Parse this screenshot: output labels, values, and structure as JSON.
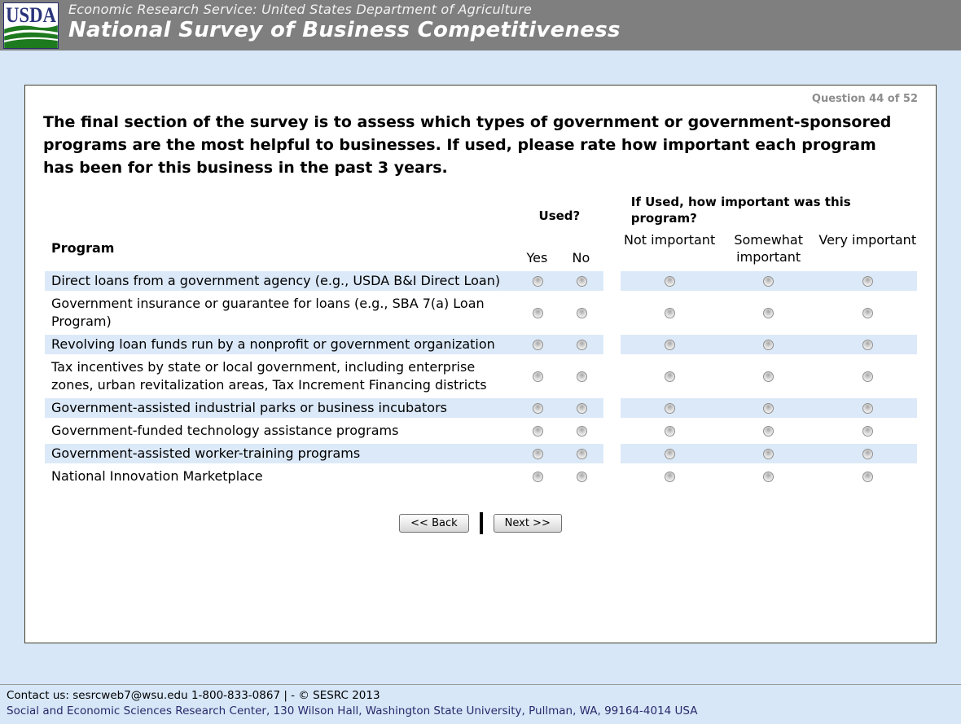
{
  "header": {
    "logo_text": "USDA",
    "agency_line": "Economic Research Service: United States Department of Agriculture",
    "survey_title": "National Survey of Business Competitiveness"
  },
  "question": {
    "counter": "Question 44 of 52",
    "text": "The final section of the survey is to assess which types of government or government-sponsored programs are the most helpful to businesses. If used, please rate how important each program has been for this business in the past 3 years."
  },
  "table": {
    "program_header": "Program",
    "used_header": "Used?",
    "importance_header": "If Used, how important was this program?",
    "used_options": [
      "Yes",
      "No"
    ],
    "importance_options": [
      "Not important",
      "Somewhat important",
      "Very important"
    ],
    "rows": [
      {
        "label": "Direct loans from a government agency (e.g., USDA B&I Direct Loan)"
      },
      {
        "label": "Government insurance or guarantee for loans (e.g., SBA 7(a) Loan Program)"
      },
      {
        "label": "Revolving loan funds run by a nonprofit or government organization"
      },
      {
        "label": "Tax incentives by state or local government, including enterprise zones, urban revitalization areas, Tax Increment Financing districts"
      },
      {
        "label": "Government-assisted industrial parks or business incubators"
      },
      {
        "label": "Government-funded technology assistance programs"
      },
      {
        "label": "Government-assisted worker-training programs"
      },
      {
        "label": "National Innovation Marketplace"
      }
    ]
  },
  "buttons": {
    "back": "<< Back",
    "next": "Next >>"
  },
  "footer": {
    "line1": "Contact us: sesrcweb7@wsu.edu 1-800-833-0867 | - © SESRC 2013",
    "line2": "Social and Economic Sciences Research Center, 130 Wilson Hall, Washington State University, Pullman, WA, 99164-4014 USA"
  },
  "colors": {
    "header_bg": "#7f7f7f",
    "page_bg": "#d7e7f8",
    "row_stripe": "#dce9f8",
    "box_border": "#41412a",
    "logo_navy": "#293379",
    "logo_green": "#1e7a1e",
    "footer_link": "#29296b"
  }
}
